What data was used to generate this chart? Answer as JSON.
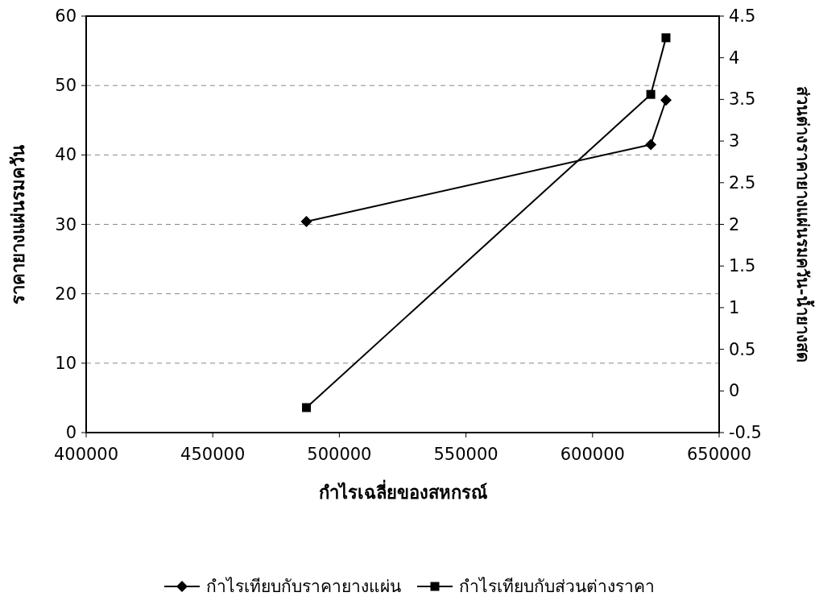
{
  "chart_data": {
    "type": "line",
    "xlabel": "กำไรเฉลี่ยของสหกรณ์",
    "ylabel": "ราคายางแผ่นรมควัน",
    "y2label": "ส่วนต่างราคายางแผ่นรมควัน-น้ำยางสด",
    "x": [
      487000,
      623000,
      629000
    ],
    "series": [
      {
        "name": "กำไรเทียบกับราคายางแผ่น",
        "color": "#000000",
        "marker": "diamond",
        "values": [
          30.4,
          41.5,
          47.9
        ]
      },
      {
        "name": "กำไรเทียบกับส่วนต่างราคา",
        "color": "#000000",
        "marker": "square",
        "axis": "y2",
        "values": [
          -0.2,
          3.56,
          4.24
        ]
      }
    ],
    "xlim": [
      400000,
      650000
    ],
    "xticks": [
      400000,
      450000,
      500000,
      550000,
      600000,
      650000
    ],
    "ylim": [
      0,
      60
    ],
    "yticks": [
      0,
      10,
      20,
      30,
      40,
      50,
      60
    ],
    "y2lim": [
      -0.5,
      4.5
    ],
    "y2ticks": [
      -0.5,
      0,
      0.5,
      1,
      1.5,
      2,
      2.5,
      3,
      3.5,
      4,
      4.5
    ],
    "grid": "y",
    "legend": "bottom",
    "line_style": "solid"
  }
}
